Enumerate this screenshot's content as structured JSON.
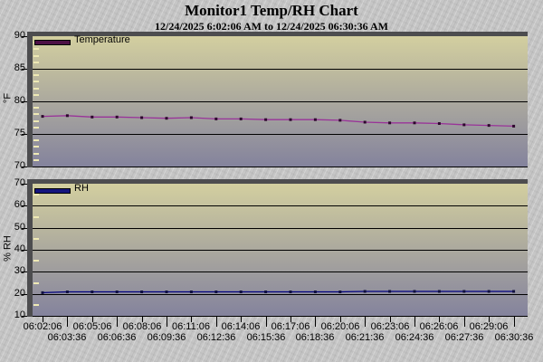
{
  "page": {
    "title": "Monitor1 Temp/RH Chart",
    "subtitle": "12/24/2025 6:02:06 AM to 12/24/2025 06:30:36 AM"
  },
  "colors": {
    "page_bg": "#c6c6c6",
    "frame": "#4d4d4f",
    "plot_gradient_top": "#d3cf9f",
    "plot_gradient_bottom": "#84839d",
    "gridline": "#000000",
    "minor_tick": "#eee9b4",
    "text": "#000000"
  },
  "chart_data": [
    {
      "type": "line",
      "legend": "Temperature",
      "ylabel": "°F",
      "ylim": [
        70,
        90
      ],
      "yticks": [
        90,
        85,
        80,
        75,
        70
      ],
      "y_minor_step": 1,
      "grid": true,
      "legend_position": "top-left",
      "line_color": "#993399",
      "marker_color": "#2d072d",
      "legend_swatch_color": "#4d1045",
      "categories": [
        "06:02:06",
        "06:03:36",
        "06:05:06",
        "06:06:36",
        "06:08:06",
        "06:09:36",
        "06:11:06",
        "06:12:36",
        "06:14:06",
        "06:15:36",
        "06:17:06",
        "06:18:36",
        "06:20:06",
        "06:21:36",
        "06:23:06",
        "06:24:36",
        "06:26:06",
        "06:27:36",
        "06:29:06",
        "06:30:36"
      ],
      "values": [
        77.7,
        77.8,
        77.6,
        77.6,
        77.5,
        77.4,
        77.5,
        77.3,
        77.3,
        77.2,
        77.2,
        77.2,
        77.1,
        76.8,
        76.7,
        76.7,
        76.6,
        76.4,
        76.3,
        76.2
      ]
    },
    {
      "type": "line",
      "legend": "RH",
      "ylabel": "% RH",
      "ylim": [
        10,
        70
      ],
      "yticks": [
        70,
        60,
        50,
        40,
        30,
        20,
        10
      ],
      "y_minor_step": 5,
      "grid": true,
      "legend_position": "top-left",
      "line_color": "#00007d",
      "marker_color": "#101040",
      "legend_swatch_color": "#15157e",
      "categories": [
        "06:02:06",
        "06:03:36",
        "06:05:06",
        "06:06:36",
        "06:08:06",
        "06:09:36",
        "06:11:06",
        "06:12:36",
        "06:14:06",
        "06:15:36",
        "06:17:06",
        "06:18:36",
        "06:20:06",
        "06:21:36",
        "06:23:06",
        "06:24:36",
        "06:26:06",
        "06:27:36",
        "06:29:06",
        "06:30:36"
      ],
      "values": [
        20.5,
        20.9,
        20.9,
        20.9,
        20.9,
        20.9,
        20.9,
        20.9,
        20.9,
        20.9,
        20.9,
        20.9,
        20.9,
        21.1,
        21.1,
        21.1,
        21.1,
        21.1,
        21.1,
        21.1
      ]
    }
  ]
}
